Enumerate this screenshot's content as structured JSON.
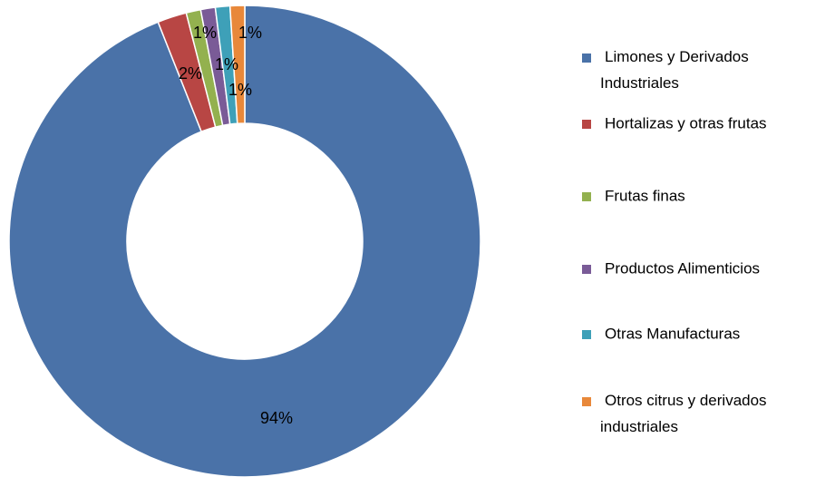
{
  "chart_data": {
    "type": "donut",
    "categories": [
      "Limones y Derivados Industriales",
      "Hortalizas y otras frutas",
      "Frutas finas",
      "Productos Alimenticios",
      "Otras Manufacturas",
      "Otros citrus y derivados industriales"
    ],
    "values": [
      94,
      2,
      1,
      1,
      1,
      1
    ],
    "value_labels": [
      "94%",
      "2%",
      "1%",
      "1%",
      "1%",
      "1%"
    ],
    "colors": [
      "#4a72a8",
      "#b84644",
      "#93b14f",
      "#7a5b97",
      "#3ea0b8",
      "#e8883a"
    ],
    "legend": "right"
  }
}
